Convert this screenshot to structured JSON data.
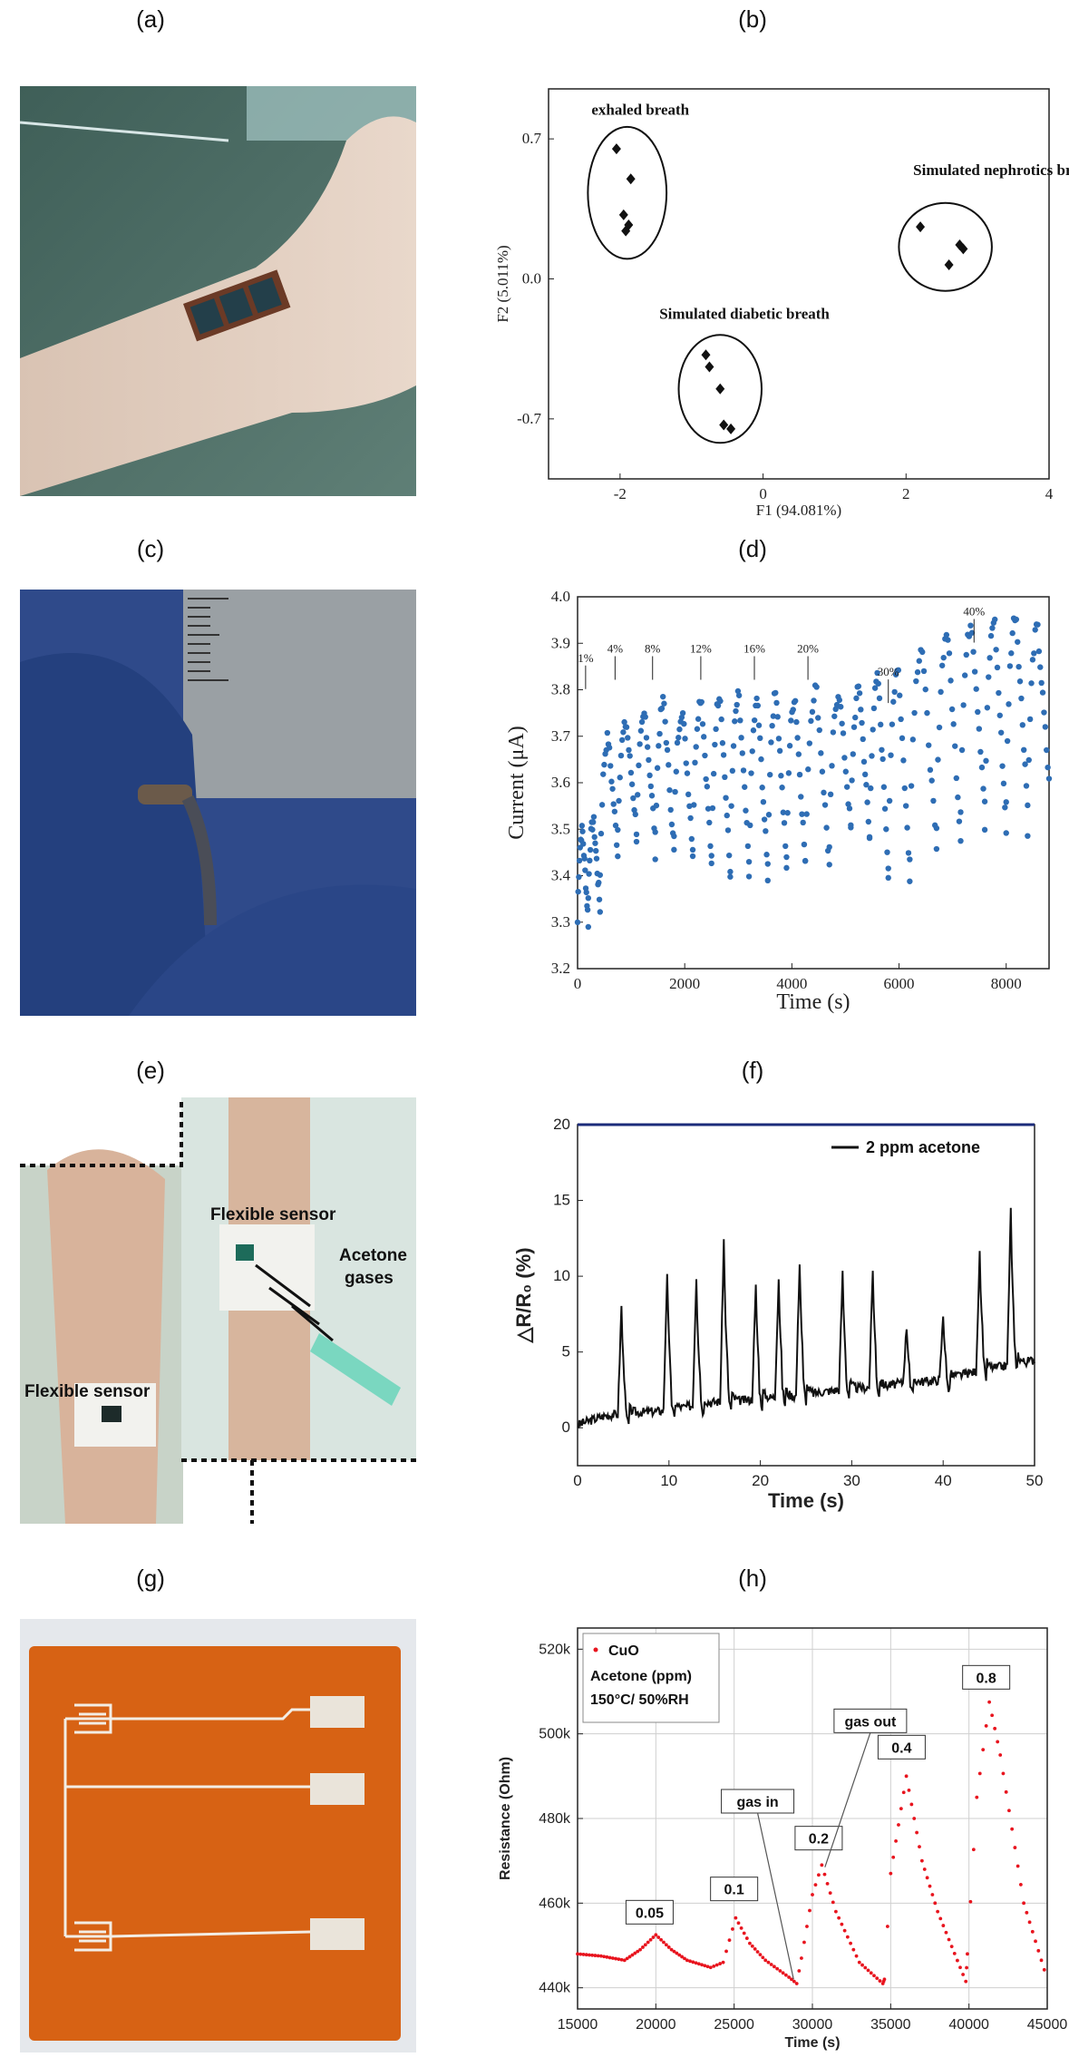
{
  "panel_labels": [
    "(a)",
    "(b)",
    "(c)",
    "(d)",
    "(e)",
    "(f)",
    "(g)",
    "(h)"
  ],
  "photo_e_texts": {
    "flexible_sensor_1": "Flexible sensor",
    "flexible_sensor_2": "Flexible sensor",
    "acetone_1": "Acetone",
    "acetone_2": "gases"
  },
  "chart_data": [
    {
      "id": "b",
      "type": "scatter",
      "xlabel": "F1 (94.081%)",
      "ylabel": "F2 (5.011%)",
      "xlim": [
        -3,
        4
      ],
      "ylim": [
        -1.0,
        0.95
      ],
      "xticks": [
        "-2",
        "0",
        "2",
        "4"
      ],
      "xtick_values": [
        -2,
        0,
        2,
        4
      ],
      "yticks": [
        "0.7",
        "0.0",
        "-0.7"
      ],
      "ytick_values": [
        0.7,
        0.0,
        -0.7
      ],
      "series": [
        {
          "name": "exhaled breath",
          "points": [
            [
              -2.05,
              0.65
            ],
            [
              -1.85,
              0.5
            ],
            [
              -1.95,
              0.32
            ],
            [
              -1.88,
              0.27
            ],
            [
              -1.92,
              0.24
            ]
          ],
          "ellipse": {
            "cx": -1.9,
            "cy": 0.43,
            "rx": 0.55,
            "ry": 0.33
          }
        },
        {
          "name": "Simulated nephrotics breath",
          "points": [
            [
              2.2,
              0.26
            ],
            [
              2.75,
              0.17
            ],
            [
              2.8,
              0.15
            ],
            [
              2.6,
              0.07
            ]
          ],
          "ellipse": {
            "cx": 2.55,
            "cy": 0.16,
            "rx": 0.65,
            "ry": 0.22
          }
        },
        {
          "name": "Simulated diabetic breath",
          "points": [
            [
              -0.8,
              -0.38
            ],
            [
              -0.75,
              -0.44
            ],
            [
              -0.6,
              -0.55
            ],
            [
              -0.55,
              -0.73
            ],
            [
              -0.45,
              -0.75
            ]
          ],
          "ellipse": {
            "cx": -0.6,
            "cy": -0.55,
            "rx": 0.58,
            "ry": 0.27
          }
        }
      ]
    },
    {
      "id": "d",
      "type": "scatter",
      "xlabel": "Time (s)",
      "ylabel": "Current (μA)",
      "xlim": [
        0,
        8800
      ],
      "ylim": [
        3.2,
        4.0
      ],
      "xticks": [
        "0",
        "2000",
        "4000",
        "6000",
        "8000"
      ],
      "xtick_values": [
        0,
        2000,
        4000,
        6000,
        8000
      ],
      "yticks": [
        "3.2",
        "3.3",
        "3.4",
        "3.5",
        "3.6",
        "3.7",
        "3.8",
        "3.9",
        "4.0"
      ],
      "ytick_values": [
        3.2,
        3.3,
        3.4,
        3.5,
        3.6,
        3.7,
        3.8,
        3.9,
        4.0
      ],
      "color": "#2e6db4",
      "annotations": [
        {
          "text": "1%",
          "x": 150,
          "y": 3.86
        },
        {
          "text": "4%",
          "x": 700,
          "y": 3.88
        },
        {
          "text": "8%",
          "x": 1400,
          "y": 3.88
        },
        {
          "text": "12%",
          "x": 2300,
          "y": 3.88
        },
        {
          "text": "16%",
          "x": 3300,
          "y": 3.88
        },
        {
          "text": "20%",
          "x": 4300,
          "y": 3.88
        },
        {
          "text": "30%",
          "x": 5800,
          "y": 3.83
        },
        {
          "text": "40%",
          "x": 7400,
          "y": 3.96
        }
      ],
      "cycles": [
        {
          "start": 0,
          "base": 3.3,
          "peak": 3.5,
          "low": 3.3
        },
        {
          "start": 200,
          "base": 3.35,
          "peak": 3.52,
          "low": 3.33
        },
        {
          "start": 420,
          "base": 3.4,
          "peak": 3.7,
          "low": 3.45
        },
        {
          "start": 750,
          "base": 3.5,
          "peak": 3.73,
          "low": 3.5
        },
        {
          "start": 1100,
          "base": 3.48,
          "peak": 3.75,
          "low": 3.48
        },
        {
          "start": 1450,
          "base": 3.45,
          "peak": 3.78,
          "low": 3.45
        },
        {
          "start": 1800,
          "base": 3.48,
          "peak": 3.76,
          "low": 3.46
        },
        {
          "start": 2150,
          "base": 3.45,
          "peak": 3.79,
          "low": 3.43
        },
        {
          "start": 2500,
          "base": 3.42,
          "peak": 3.8,
          "low": 3.4
        },
        {
          "start": 2850,
          "base": 3.42,
          "peak": 3.79,
          "low": 3.42
        },
        {
          "start": 3200,
          "base": 3.4,
          "peak": 3.78,
          "low": 3.4
        },
        {
          "start": 3550,
          "base": 3.42,
          "peak": 3.8,
          "low": 3.42
        },
        {
          "start": 3900,
          "base": 3.43,
          "peak": 3.79,
          "low": 3.43
        },
        {
          "start": 4250,
          "base": 3.42,
          "peak": 3.81,
          "low": 3.42
        },
        {
          "start": 4700,
          "base": 3.45,
          "peak": 3.8,
          "low": 3.5
        },
        {
          "start": 5100,
          "base": 3.5,
          "peak": 3.81,
          "low": 3.48
        },
        {
          "start": 5450,
          "base": 3.48,
          "peak": 3.83,
          "low": 3.42
        },
        {
          "start": 5800,
          "base": 3.4,
          "peak": 3.86,
          "low": 3.4
        },
        {
          "start": 6200,
          "base": 3.45,
          "peak": 3.9,
          "low": 3.45
        },
        {
          "start": 6700,
          "base": 3.5,
          "peak": 3.93,
          "low": 3.48
        },
        {
          "start": 7150,
          "base": 3.55,
          "peak": 3.95,
          "low": 3.55
        },
        {
          "start": 7600,
          "base": 3.5,
          "peak": 3.96,
          "low": 3.5
        },
        {
          "start": 8000,
          "base": 3.55,
          "peak": 3.97,
          "low": 3.55
        },
        {
          "start": 8400,
          "base": 3.5,
          "peak": 3.94,
          "low": 3.6
        }
      ]
    },
    {
      "id": "f",
      "type": "line",
      "xlabel": "Time (s)",
      "ylabel": "△R/R₀ (%)",
      "xlim": [
        0,
        50
      ],
      "ylim": [
        -2.5,
        20
      ],
      "xticks": [
        "0",
        "10",
        "20",
        "30",
        "40",
        "50"
      ],
      "xtick_values": [
        0,
        10,
        20,
        30,
        40,
        50
      ],
      "yticks": [
        "0",
        "5",
        "10",
        "15",
        "20"
      ],
      "ytick_values": [
        0,
        5,
        10,
        15,
        20
      ],
      "legend": "2 ppm acetone",
      "legend_position": "top-right",
      "color": "#111111",
      "baseline": [
        [
          0,
          0.2
        ],
        [
          3,
          0.8
        ],
        [
          6,
          1.0
        ],
        [
          9,
          1.1
        ],
        [
          12,
          1.4
        ],
        [
          15,
          1.7
        ],
        [
          18,
          1.8
        ],
        [
          21,
          2.0
        ],
        [
          24,
          2.1
        ],
        [
          27,
          2.4
        ],
        [
          30,
          2.6
        ],
        [
          33,
          2.7
        ],
        [
          36,
          3.0
        ],
        [
          39,
          3.1
        ],
        [
          42,
          3.5
        ],
        [
          45,
          3.9
        ],
        [
          48,
          4.2
        ],
        [
          50,
          4.5
        ]
      ],
      "peaks": [
        [
          4.8,
          8.0
        ],
        [
          9.8,
          10.3
        ],
        [
          13.0,
          10.0
        ],
        [
          16.0,
          12.4
        ],
        [
          19.5,
          9.3
        ],
        [
          22.0,
          9.9
        ],
        [
          24.3,
          11.0
        ],
        [
          29.0,
          10.2
        ],
        [
          32.3,
          10.4
        ],
        [
          36.0,
          6.7
        ],
        [
          40.0,
          7.4
        ],
        [
          44.0,
          11.4
        ],
        [
          47.4,
          14.4
        ]
      ]
    },
    {
      "id": "h",
      "type": "line",
      "xlabel": "Time (s)",
      "ylabel": "Resistance (Ohm)",
      "xlim": [
        15000,
        45000
      ],
      "ylim": [
        435000,
        525000
      ],
      "xticks": [
        "15000",
        "20000",
        "25000",
        "30000",
        "35000",
        "40000",
        "45000"
      ],
      "xtick_values": [
        15000,
        20000,
        25000,
        30000,
        35000,
        40000,
        45000
      ],
      "yticks": [
        "440k",
        "460k",
        "480k",
        "500k",
        "520k"
      ],
      "ytick_values": [
        440000,
        460000,
        480000,
        500000,
        520000
      ],
      "legend": "CuO",
      "legend_position": "top-left",
      "legend_title": "Acetone (ppm)",
      "condition": "150°C/ 50%RH",
      "color": "#e8141e",
      "points": [
        [
          15000,
          448000
        ],
        [
          16500,
          447500
        ],
        [
          18000,
          446500
        ],
        [
          19000,
          449000
        ],
        [
          20000,
          452500
        ],
        [
          21000,
          449000
        ],
        [
          22000,
          446500
        ],
        [
          23500,
          444800
        ],
        [
          24300,
          446000
        ],
        [
          25100,
          456500
        ],
        [
          26000,
          450500
        ],
        [
          27000,
          446500
        ],
        [
          28500,
          442500
        ],
        [
          29000,
          441000
        ],
        [
          29300,
          447000
        ],
        [
          30000,
          462000
        ],
        [
          30600,
          469000
        ],
        [
          31500,
          458000
        ],
        [
          33000,
          446000
        ],
        [
          34500,
          441000
        ],
        [
          34600,
          442000
        ],
        [
          35000,
          467000
        ],
        [
          36000,
          490000
        ],
        [
          37000,
          470000
        ],
        [
          38000,
          458000
        ],
        [
          39800,
          441500
        ],
        [
          39900,
          448000
        ],
        [
          40500,
          485000
        ],
        [
          41300,
          507500
        ],
        [
          42000,
          495000
        ],
        [
          43500,
          460000
        ],
        [
          45000,
          442000
        ]
      ],
      "value_labels": [
        {
          "text": "0.05",
          "x": 19600,
          "y": 457000
        },
        {
          "text": "0.1",
          "x": 25000,
          "y": 462500
        },
        {
          "text": "0.2",
          "x": 30400,
          "y": 474500
        },
        {
          "text": "0.4",
          "x": 35700,
          "y": 496000
        },
        {
          "text": "0.8",
          "x": 41100,
          "y": 512500
        }
      ],
      "callouts": [
        {
          "text": "gas in",
          "x": 26500,
          "y": 483000,
          "tx": 28800,
          "ty": 442000
        },
        {
          "text": "gas out",
          "x": 33700,
          "y": 502000,
          "tx": 30800,
          "ty": 468500
        }
      ]
    }
  ]
}
